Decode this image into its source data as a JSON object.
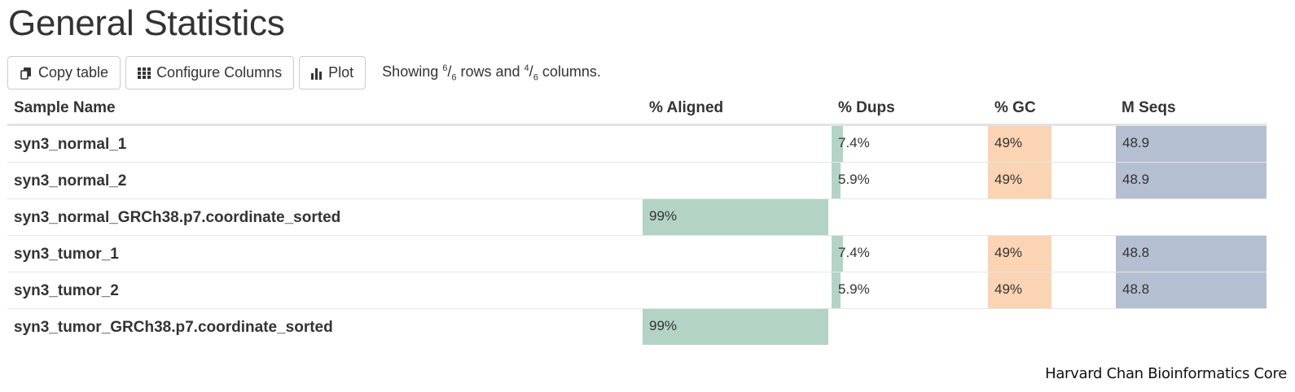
{
  "page": {
    "title": "General Statistics",
    "footer": "Harvard Chan Bioinformatics Core"
  },
  "toolbar": {
    "copy_label": "Copy table",
    "configure_label": "Configure Columns",
    "plot_label": "Plot",
    "showing_prefix": "Showing ",
    "rows_num": "6",
    "rows_den": "6",
    "rows_mid": " rows and ",
    "cols_num": "4",
    "cols_den": "6",
    "cols_suffix": " columns."
  },
  "table": {
    "headers": {
      "sample": "Sample Name",
      "aligned": "% Aligned",
      "dups": "% Dups",
      "gc": "% GC",
      "mseqs": "M Seqs"
    },
    "rows": [
      {
        "name": "syn3_normal_1",
        "aligned": "",
        "dups": "7.4%",
        "gc": "49%",
        "mseqs": "48.9"
      },
      {
        "name": "syn3_normal_2",
        "aligned": "",
        "dups": "5.9%",
        "gc": "49%",
        "mseqs": "48.9"
      },
      {
        "name": "syn3_normal_GRCh38.p7.coordinate_sorted",
        "aligned": "99%",
        "dups": "",
        "gc": "",
        "mseqs": ""
      },
      {
        "name": "syn3_tumor_1",
        "aligned": "",
        "dups": "7.4%",
        "gc": "49%",
        "mseqs": "48.8"
      },
      {
        "name": "syn3_tumor_2",
        "aligned": "",
        "dups": "5.9%",
        "gc": "49%",
        "mseqs": "48.8"
      },
      {
        "name": "syn3_tumor_GRCh38.p7.coordinate_sorted",
        "aligned": "99%",
        "dups": "",
        "gc": "",
        "mseqs": ""
      }
    ],
    "bar_levels": {
      "aligned": [
        null,
        null,
        0.99,
        null,
        null,
        0.99
      ],
      "dups": [
        0.074,
        0.059,
        null,
        0.074,
        0.059,
        null
      ],
      "gc": [
        0.49,
        0.49,
        null,
        0.49,
        0.49,
        null
      ],
      "mseqs": [
        1.0,
        1.0,
        null,
        0.998,
        0.998,
        null
      ]
    },
    "colors": {
      "aligned": "#b3d4c5",
      "dups": "#b3d4c5",
      "gc": "#fbd4b3",
      "mseqs": "#b5bfd2"
    }
  }
}
